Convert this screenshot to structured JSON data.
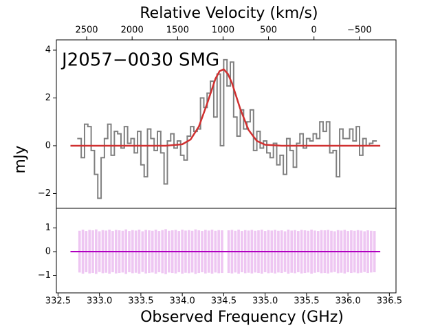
{
  "chart_data": {
    "type": "spectrum",
    "title": "Relative Velocity (km/s)",
    "annotation": "J2057−0030 SMG",
    "xlabel": "Observed Frequency (GHz)",
    "ylabel": "mJy",
    "xlim": [
      332.48,
      336.58
    ],
    "xticks": [
      332.5,
      {
        "value": 333,
        "label": "333.0"
      },
      333.5,
      {
        "value": 334,
        "label": "334.0"
      },
      334.5,
      {
        "value": 335,
        "label": "335.0"
      },
      335.5,
      {
        "value": 336,
        "label": "336.0"
      },
      336.5
    ],
    "x2lim": [
      2833,
      -902
    ],
    "x2ticks": [
      2500,
      2000,
      1500,
      1000,
      500,
      0,
      {
        "value": -500,
        "label": "−500"
      }
    ],
    "ylim": [
      -2.62,
      4.43
    ],
    "yticks": [
      4,
      2,
      0,
      {
        "value": -2,
        "label": "−2"
      }
    ],
    "residual_ylim": [
      -1.74,
      1.83
    ],
    "residual_yticks": [
      1,
      0,
      {
        "value": -1,
        "label": "−1"
      }
    ],
    "channel_width": 0.04,
    "x": [
      332.76,
      332.8,
      332.84,
      332.88,
      332.92,
      332.96,
      333.0,
      333.04,
      333.08,
      333.12,
      333.16,
      333.2,
      333.24,
      333.28,
      333.32,
      333.36,
      333.4,
      333.44,
      333.48,
      333.52,
      333.56,
      333.6,
      333.64,
      333.68,
      333.72,
      333.76,
      333.8,
      333.84,
      333.88,
      333.92,
      333.96,
      334.0,
      334.04,
      334.08,
      334.12,
      334.16,
      334.2,
      334.24,
      334.28,
      334.32,
      334.36,
      334.4,
      334.44,
      334.48,
      334.52,
      334.56,
      334.6,
      334.64,
      334.68,
      334.72,
      334.76,
      334.8,
      334.84,
      334.88,
      334.92,
      334.96,
      335.0,
      335.04,
      335.08,
      335.12,
      335.16,
      335.2,
      335.24,
      335.28,
      335.32,
      335.36,
      335.4,
      335.44,
      335.48,
      335.52,
      335.56,
      335.6,
      335.64,
      335.68,
      335.72,
      335.76,
      335.8,
      335.84,
      335.88,
      335.92,
      335.96,
      336.0,
      336.04,
      336.08,
      336.12,
      336.16,
      336.2,
      336.24,
      336.28,
      336.32
    ],
    "series": [
      {
        "name": "spectrum",
        "color": "#808080",
        "values": [
          0.3,
          -0.5,
          0.9,
          0.8,
          -0.2,
          -1.2,
          -2.2,
          -0.5,
          0.3,
          0.9,
          -0.4,
          0.6,
          0.5,
          -0.1,
          0.8,
          0.1,
          0.3,
          -0.3,
          0.6,
          -0.8,
          -1.3,
          0.7,
          0.3,
          -0.2,
          0.6,
          -0.3,
          -1.6,
          0.2,
          0.5,
          -0.1,
          0.2,
          -0.4,
          -0.6,
          0.4,
          0.8,
          0.6,
          0.7,
          2.0,
          1.6,
          2.2,
          2.7,
          1.2,
          3.0,
          0.0,
          3.6,
          2.5,
          3.5,
          1.2,
          0.4,
          1.5,
          0.7,
          1.0,
          1.5,
          -0.2,
          0.6,
          -0.1,
          0.2,
          -0.3,
          -0.5,
          0.1,
          -0.8,
          -0.4,
          -1.2,
          0.3,
          -0.2,
          -0.9,
          0.1,
          0.5,
          -0.1,
          0.3,
          0.2,
          0.5,
          0.3,
          1.0,
          0.6,
          1.0,
          -0.3,
          -0.2,
          -1.3,
          0.7,
          0.3,
          0.3,
          0.7,
          0.2,
          0.8,
          -0.4,
          0.3,
          0.0,
          0.1,
          0.2
        ],
        "errors": [
          0.88,
          0.93,
          0.87,
          0.92,
          0.9,
          0.94,
          0.86,
          0.91,
          0.89,
          0.93,
          0.87,
          0.92,
          0.9,
          0.88,
          0.94,
          0.87,
          0.91,
          0.89,
          0.93,
          0.86,
          0.92,
          0.9,
          0.88,
          0.93,
          0.87,
          0.91,
          0.95,
          0.88,
          0.9,
          0.92,
          0.87,
          0.93,
          0.89,
          0.91,
          0.88,
          0.94,
          0.9,
          0.87,
          0.92,
          0.89,
          0.93,
          0.88,
          0.91,
          0.9,
          null,
          0.9,
          0.92,
          0.88,
          0.93,
          0.87,
          0.91,
          0.89,
          0.92,
          0.88,
          0.9,
          0.93,
          0.87,
          0.91,
          0.89,
          0.92,
          0.88,
          0.9,
          0.86,
          0.93,
          0.89,
          0.91,
          0.87,
          0.92,
          0.9,
          0.88,
          0.93,
          0.89,
          0.87,
          0.91,
          0.9,
          0.92,
          0.88,
          0.86,
          0.91,
          0.89,
          0.92,
          0.87,
          0.9,
          0.88,
          0.91,
          0.89,
          0.86,
          0.9,
          0.88,
          0.87
        ]
      },
      {
        "name": "fit",
        "color": "#d03030",
        "x": [
          332.65,
          333.8,
          334.0,
          334.1,
          334.2,
          334.3,
          334.4,
          334.45,
          334.5,
          334.55,
          334.6,
          334.7,
          334.8,
          334.9,
          335.0,
          335.2,
          336.39
        ],
        "values": [
          0,
          0,
          0.06,
          0.26,
          0.8,
          1.76,
          2.8,
          3.12,
          3.2,
          3.01,
          2.62,
          1.54,
          0.66,
          0.2,
          0.04,
          0,
          0
        ]
      }
    ],
    "residual": {
      "color": "#b000c0",
      "error_color": "#eec6f2",
      "x": [
        332.65,
        336.39
      ],
      "values": [
        0,
        0
      ]
    }
  }
}
